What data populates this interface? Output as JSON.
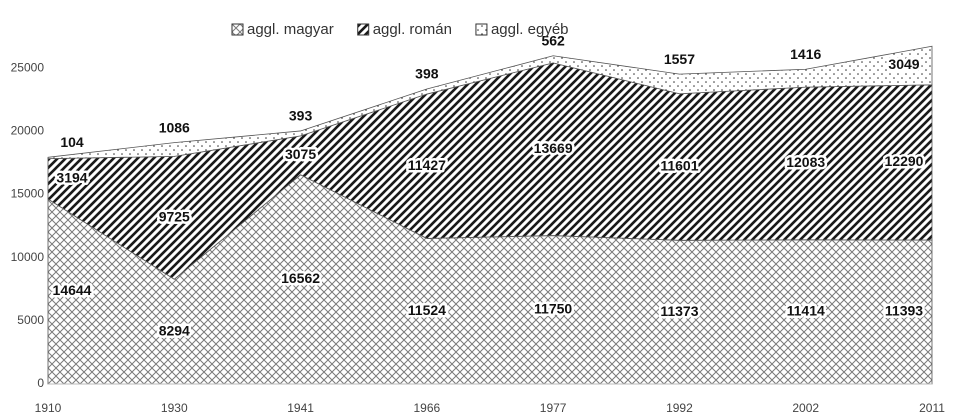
{
  "chart_data": {
    "type": "stacked_area",
    "categories": [
      "1910",
      "1930",
      "1941",
      "1966",
      "1977",
      "1992",
      "2002",
      "2011"
    ],
    "series": [
      {
        "name": "aggl. magyar",
        "color": "#7a7a7a",
        "pattern": "crosshatch",
        "values": [
          14644,
          8294,
          16562,
          11524,
          11750,
          11373,
          11414,
          11393
        ]
      },
      {
        "name": "aggl. román",
        "color": "#1a1a1a",
        "pattern": "diagonal",
        "values": [
          3194,
          9725,
          3075,
          11427,
          13669,
          11601,
          12083,
          12290
        ]
      },
      {
        "name": "aggl. egyéb",
        "color": "#333333",
        "pattern": "dots",
        "values": [
          104,
          1086,
          393,
          398,
          562,
          1557,
          1416,
          3049
        ]
      }
    ],
    "ylim": [
      0,
      30000
    ],
    "yticks": [
      0,
      5000,
      10000,
      15000,
      20000,
      25000
    ],
    "legend": "top"
  }
}
